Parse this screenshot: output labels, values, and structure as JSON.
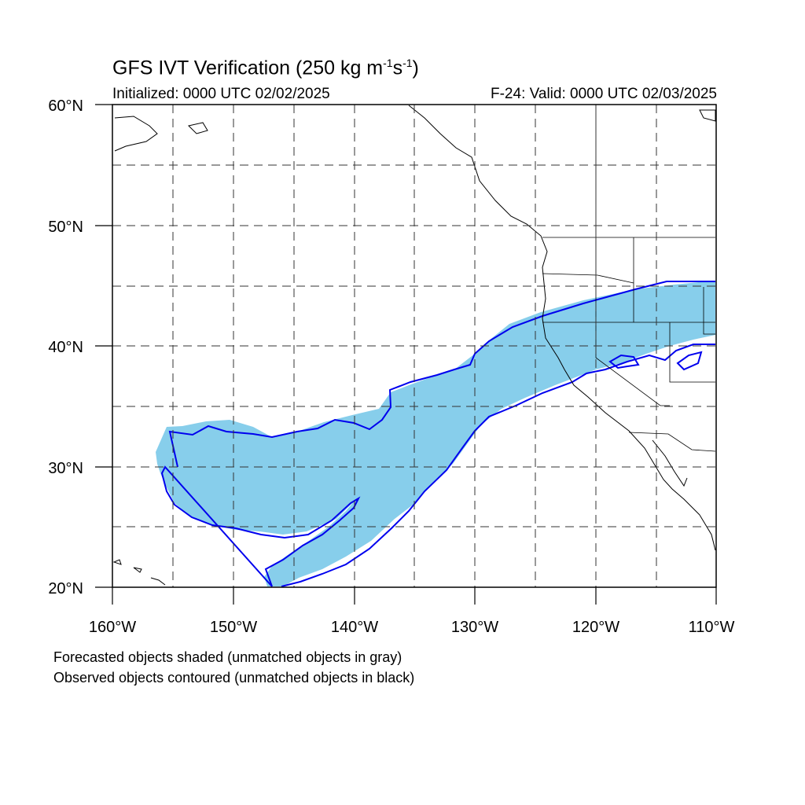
{
  "title": {
    "prefix": "GFS IVT Verification (250 kg m",
    "sup1": "-1",
    "mid": "s",
    "sup2": "-1",
    "suffix": ")"
  },
  "initialized": "Initialized: 0000 UTC 02/02/2025",
  "valid": "F-24: Valid: 0000 UTC 02/03/2025",
  "notes": [
    "Forecasted objects shaded (unmatched objects in gray)",
    "Observed objects contoured (unmatched objects in black)"
  ],
  "map": {
    "lon_range": [
      -160,
      -110
    ],
    "lat_range": [
      20,
      60
    ],
    "lat_labels": [
      "20°N",
      "30°N",
      "40°N",
      "50°N",
      "60°N"
    ],
    "lon_labels": [
      "160°W",
      "150°W",
      "140°W",
      "130°W",
      "120°W",
      "110°W"
    ],
    "grid": "dashed every 5 degrees",
    "colors": {
      "forecast_fill": "#87ceeb",
      "observed_contour": "#0000ee",
      "coastline": "#000000",
      "grid": "#333333"
    }
  }
}
